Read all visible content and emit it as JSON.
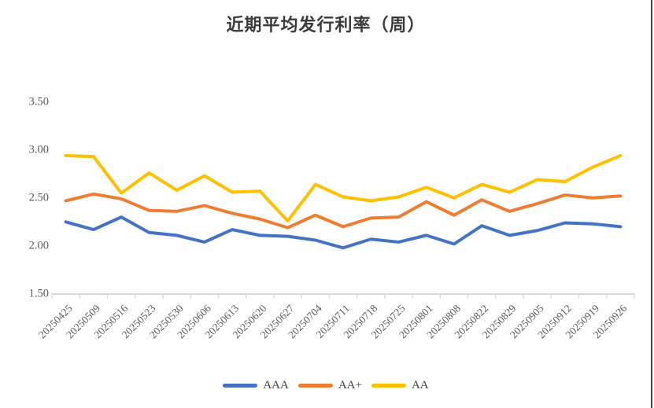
{
  "title": "近期平均发行利率（周）",
  "colors": {
    "aaa_blue": "#4472C4",
    "aa_plus_orange": "#ED7D31",
    "aa_yellow": "#FFC000",
    "axis": "#D9D9D9",
    "tick_label": "#595959",
    "title_text": "#3B3B3B",
    "legend_text": "#404040",
    "page_border": "#454545"
  },
  "chart_data": {
    "type": "line",
    "title": "近期平均发行利率（周）",
    "categories": [
      "20250425",
      "20250509",
      "20250516",
      "20250523",
      "20250530",
      "20250606",
      "20250613",
      "20250620",
      "20250627",
      "20250704",
      "20250711",
      "20250718",
      "20250725",
      "20250801",
      "20250808",
      "20250822",
      "20250829",
      "20250905",
      "20250912",
      "20250919",
      "20250926"
    ],
    "series": [
      {
        "name": "AAA",
        "color": "#4472C4",
        "values": [
          2.24,
          2.16,
          2.29,
          2.13,
          2.1,
          2.03,
          2.16,
          2.1,
          2.09,
          2.05,
          1.97,
          2.06,
          2.03,
          2.1,
          2.01,
          2.2,
          2.1,
          2.15,
          2.23,
          2.22,
          2.19
        ]
      },
      {
        "name": "AA+",
        "color": "#ED7D31",
        "values": [
          2.46,
          2.53,
          2.48,
          2.36,
          2.35,
          2.41,
          2.33,
          2.27,
          2.18,
          2.31,
          2.19,
          2.28,
          2.29,
          2.45,
          2.31,
          2.47,
          2.35,
          2.43,
          2.52,
          2.49,
          2.51
        ]
      },
      {
        "name": "AA",
        "color": "#FFC000",
        "values": [
          2.93,
          2.92,
          2.54,
          2.75,
          2.57,
          2.72,
          2.55,
          2.56,
          2.25,
          2.63,
          2.5,
          2.46,
          2.5,
          2.6,
          2.49,
          2.63,
          2.55,
          2.68,
          2.66,
          2.81,
          2.93
        ]
      }
    ],
    "ylim": [
      1.5,
      3.5
    ],
    "y_ticks": [
      "1.50",
      "2.00",
      "2.50",
      "3.00",
      "3.50"
    ],
    "y_tick_values": [
      1.5,
      2.0,
      2.5,
      3.0,
      3.5
    ],
    "grid": false,
    "legend_position": "bottom"
  }
}
